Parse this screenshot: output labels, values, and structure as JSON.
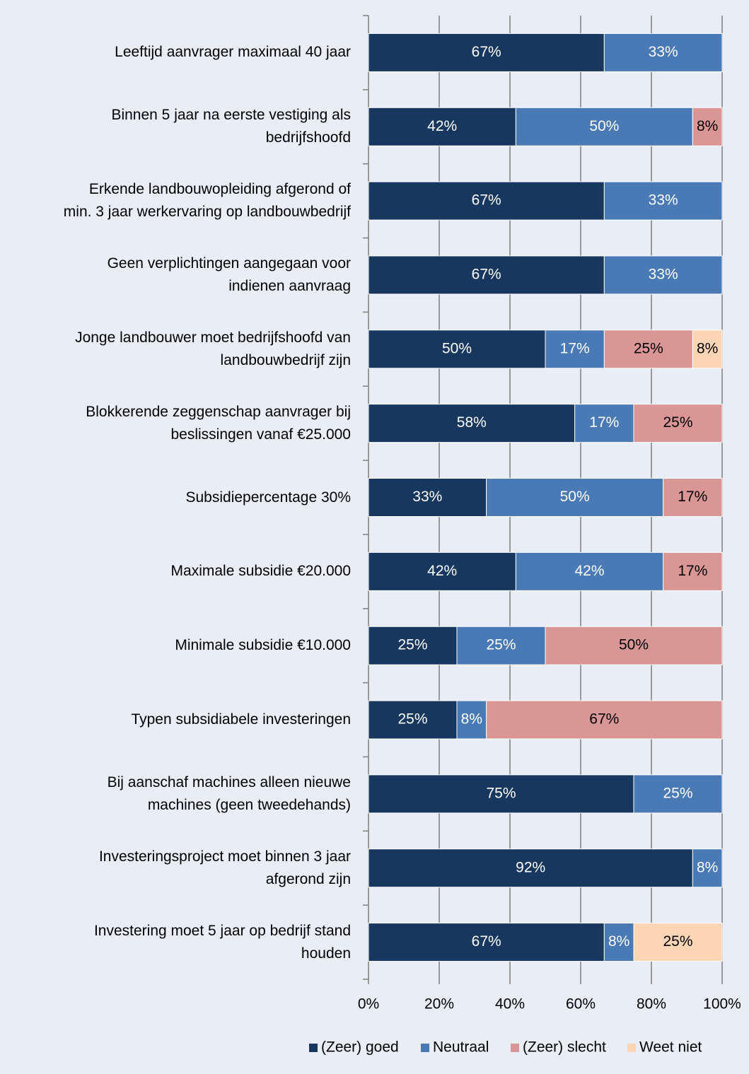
{
  "chart_data": {
    "type": "stacked_barh",
    "categories": [
      "Leeftijd aanvrager maximaal 40 jaar",
      "Binnen 5 jaar na eerste vestiging als\nbedrijfshoofd",
      "Erkende landbouwopleiding afgerond of\nmin. 3 jaar werkervaring op landbouwbedrijf",
      "Geen verplichtingen aangegaan voor\nindienen aanvraag",
      "Jonge landbouwer moet bedrijfshoofd van\nlandbouwbedrijf zijn",
      "Blokkerende zeggenschap aanvrager bij\nbeslissingen vanaf €25.000",
      "Subsidiepercentage 30%",
      "Maximale subsidie €20.000",
      "Minimale subsidie €10.000",
      "Typen subsidiabele investeringen",
      "Bij aanschaf machines alleen nieuwe\nmachines (geen tweedehands)",
      "Investeringsproject moet binnen 3 jaar\nafgerond zijn",
      "Investering moet 5 jaar op bedrijf stand\nhouden"
    ],
    "series": [
      {
        "name": "(Zeer) goed",
        "color": "#17375e",
        "values": [
          66.67,
          41.67,
          66.67,
          66.67,
          50,
          58.33,
          33.33,
          41.67,
          25,
          25,
          75,
          91.67,
          66.67
        ],
        "value_labels": [
          "67%",
          "42%",
          "67%",
          "67%",
          "50%",
          "58%",
          "33%",
          "42%",
          "25%",
          "25%",
          "75%",
          "92%",
          "67%"
        ]
      },
      {
        "name": "Neutraal",
        "color": "#4a7ab5",
        "values": [
          33.33,
          50,
          33.33,
          33.33,
          16.67,
          16.67,
          50,
          41.67,
          25,
          8.33,
          25,
          8.33,
          8.33
        ],
        "value_labels": [
          "33%",
          "50%",
          "33%",
          "33%",
          "17%",
          "17%",
          "50%",
          "42%",
          "25%",
          "8%",
          "25%",
          "8%",
          "8%"
        ]
      },
      {
        "name": "(Zeer) slecht",
        "color": "#d99694",
        "values": [
          null,
          8.33,
          null,
          null,
          25,
          25,
          16.67,
          16.67,
          50,
          66.67,
          null,
          null,
          null
        ],
        "value_labels": [
          null,
          "8%",
          null,
          null,
          "25%",
          "25%",
          "17%",
          "17%",
          "50%",
          "67%",
          null,
          null,
          null
        ]
      },
      {
        "name": "Weet niet",
        "color": "#fcd5b5",
        "values": [
          null,
          null,
          null,
          null,
          8.33,
          null,
          null,
          null,
          null,
          null,
          null,
          null,
          25
        ],
        "value_labels": [
          null,
          null,
          null,
          null,
          "8%",
          null,
          null,
          null,
          null,
          null,
          null,
          null,
          "25%"
        ]
      }
    ],
    "xlim": [
      0,
      100
    ],
    "xticks": [
      {
        "value": 0,
        "label": "0%"
      },
      {
        "value": 20,
        "label": "20%"
      },
      {
        "value": 40,
        "label": "40%"
      },
      {
        "value": 60,
        "label": "60%"
      },
      {
        "value": 80,
        "label": "80%"
      },
      {
        "value": 100,
        "label": "100%"
      }
    ],
    "grid": true,
    "legend": "bottom"
  }
}
